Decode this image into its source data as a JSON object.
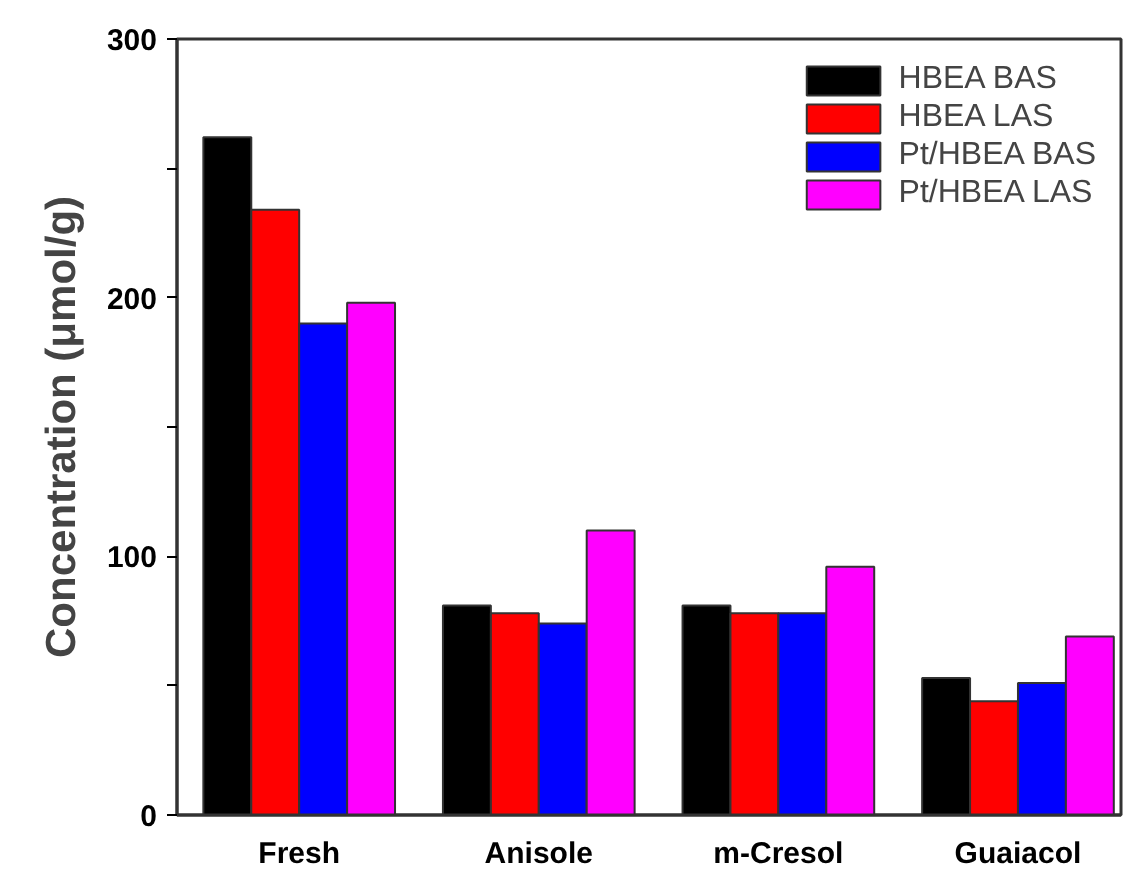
{
  "chart_data": {
    "type": "bar",
    "ylabel": "Concentration (μmol/g)",
    "categories": [
      "Fresh",
      "Anisole",
      "m-Cresol",
      "Guaiacol"
    ],
    "series": [
      {
        "name": "HBEA BAS",
        "color": "#000000",
        "values": [
          262,
          81,
          81,
          53
        ]
      },
      {
        "name": "HBEA LAS",
        "color": "#ff0000",
        "values": [
          234,
          78,
          78,
          44
        ]
      },
      {
        "name": "Pt/HBEA BAS",
        "color": "#0000ff",
        "values": [
          190,
          74,
          78,
          51
        ]
      },
      {
        "name": "Pt/HBEA LAS",
        "color": "#ff00ff",
        "values": [
          198,
          110,
          96,
          69
        ]
      }
    ],
    "ylim": [
      0,
      300
    ],
    "yticks": [
      0,
      {
        "value": 50,
        "label": null
      },
      100,
      {
        "value": 150,
        "label": null
      },
      200,
      {
        "value": 250,
        "label": null
      },
      300
    ],
    "grid": false,
    "legend": "top right"
  }
}
